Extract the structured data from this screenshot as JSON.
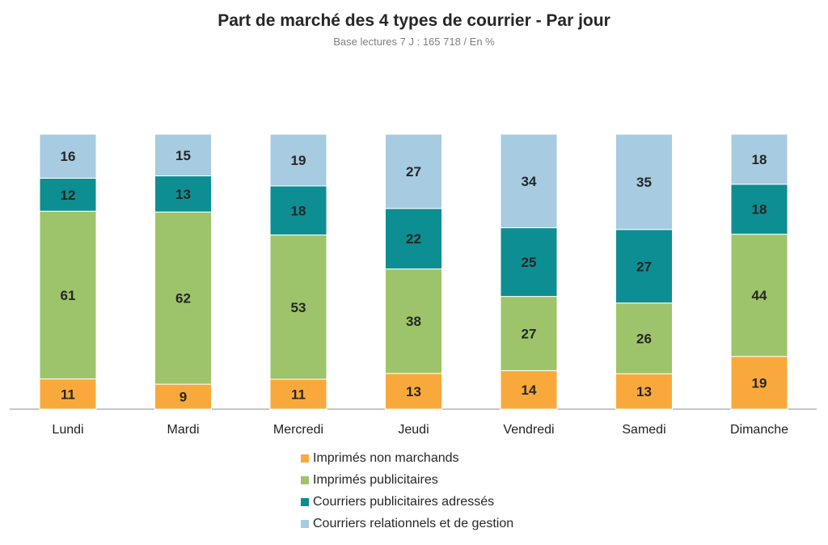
{
  "chart_data": {
    "type": "bar",
    "stacked": true,
    "title": "Part de marché des 4 types de courrier - Par jour",
    "subtitle": "Base  lectures 7 J : 165 718 / En %",
    "categories": [
      "Lundi",
      "Mardi",
      "Mercredi",
      "Jeudi",
      "Vendredi",
      "Samedi",
      "Dimanche"
    ],
    "series": [
      {
        "name": "Imprimés non marchands",
        "color": "#f9a93b",
        "values": [
          11,
          9,
          11,
          13,
          14,
          13,
          19
        ]
      },
      {
        "name": "Imprimés publicitaires",
        "color": "#9dc46a",
        "values": [
          61,
          62,
          53,
          38,
          27,
          26,
          44
        ]
      },
      {
        "name": "Courriers publicitaires adressés",
        "color": "#0d8e92",
        "values": [
          12,
          13,
          18,
          22,
          25,
          27,
          18
        ]
      },
      {
        "name": "Courriers relationnels et de gestion",
        "color": "#a7cbe0",
        "values": [
          16,
          15,
          19,
          27,
          34,
          35,
          18
        ]
      }
    ],
    "ylim": [
      0,
      100
    ],
    "grid": false,
    "legend_position": "bottom"
  }
}
